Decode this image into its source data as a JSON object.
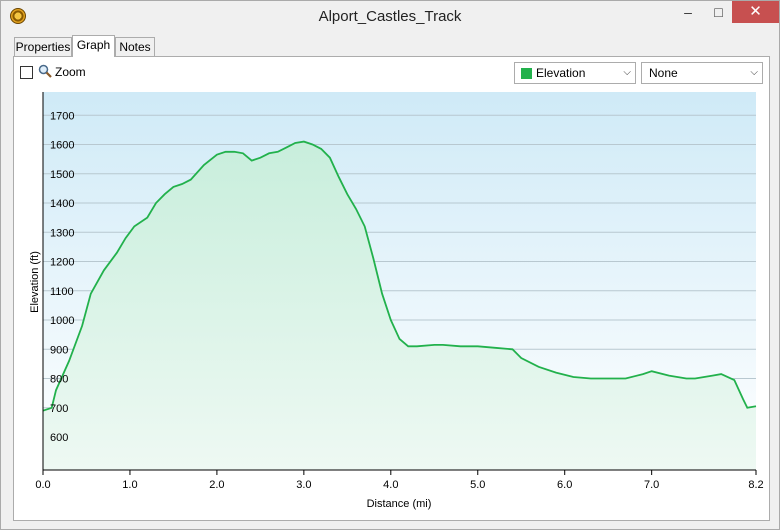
{
  "window": {
    "title": "Alport_Castles_Track"
  },
  "window_buttons": {
    "minimize": "–",
    "maximize": "□",
    "close": "✕"
  },
  "tabs": [
    {
      "label": "Properties"
    },
    {
      "label": "Graph"
    },
    {
      "label": "Notes"
    }
  ],
  "toolbar": {
    "zoom_label": "Zoom",
    "zoom_checked": false,
    "series_select": "Elevation",
    "secondary_select": "None",
    "series_color": "#22b14c"
  },
  "chart_data": {
    "type": "area",
    "xlabel": "Distance (mi)",
    "ylabel": "Elevation (ft)",
    "xlim": [
      0,
      8.2
    ],
    "ylim": [
      500,
      1800
    ],
    "x_ticks": [
      "0.0",
      "1.0",
      "2.0",
      "3.0",
      "4.0",
      "5.0",
      "6.0",
      "7.0",
      "8.2"
    ],
    "x_tick_values": [
      0,
      1,
      2,
      3,
      4,
      5,
      6,
      7,
      8.2
    ],
    "y_ticks": [
      "600",
      "700",
      "800",
      "900",
      "1000",
      "1100",
      "1200",
      "1300",
      "1400",
      "1500",
      "1600",
      "1700"
    ],
    "y_tick_values": [
      600,
      700,
      800,
      900,
      1000,
      1100,
      1200,
      1300,
      1400,
      1500,
      1600,
      1700
    ],
    "grid": true,
    "line_color": "#22b14c",
    "series": [
      {
        "x": [
          0,
          0.1,
          0.15,
          0.3,
          0.45,
          0.55,
          0.7,
          0.85,
          0.95,
          1.05,
          1.2,
          1.3,
          1.4,
          1.5,
          1.6,
          1.7,
          1.85,
          2.0,
          2.1,
          2.2,
          2.3,
          2.4,
          2.5,
          2.6,
          2.7,
          2.8,
          2.9,
          3.0,
          3.1,
          3.2,
          3.3,
          3.4,
          3.5,
          3.6,
          3.7,
          3.8,
          3.9,
          4.0,
          4.1,
          4.2,
          4.3,
          4.5,
          4.6,
          4.8,
          5.0,
          5.2,
          5.4,
          5.5,
          5.7,
          5.9,
          6.1,
          6.3,
          6.5,
          6.7,
          6.9,
          7.0,
          7.2,
          7.4,
          7.5,
          7.7,
          7.8,
          7.95,
          8.05,
          8.1,
          8.2
        ],
        "y": [
          690,
          700,
          760,
          860,
          980,
          1090,
          1170,
          1230,
          1280,
          1320,
          1350,
          1400,
          1430,
          1455,
          1465,
          1480,
          1530,
          1565,
          1575,
          1575,
          1570,
          1545,
          1555,
          1570,
          1575,
          1590,
          1605,
          1610,
          1600,
          1585,
          1555,
          1490,
          1430,
          1380,
          1320,
          1210,
          1090,
          1000,
          935,
          910,
          910,
          915,
          915,
          910,
          910,
          905,
          900,
          870,
          840,
          820,
          805,
          800,
          800,
          800,
          815,
          825,
          810,
          800,
          800,
          810,
          815,
          795,
          730,
          700,
          705
        ]
      }
    ]
  }
}
